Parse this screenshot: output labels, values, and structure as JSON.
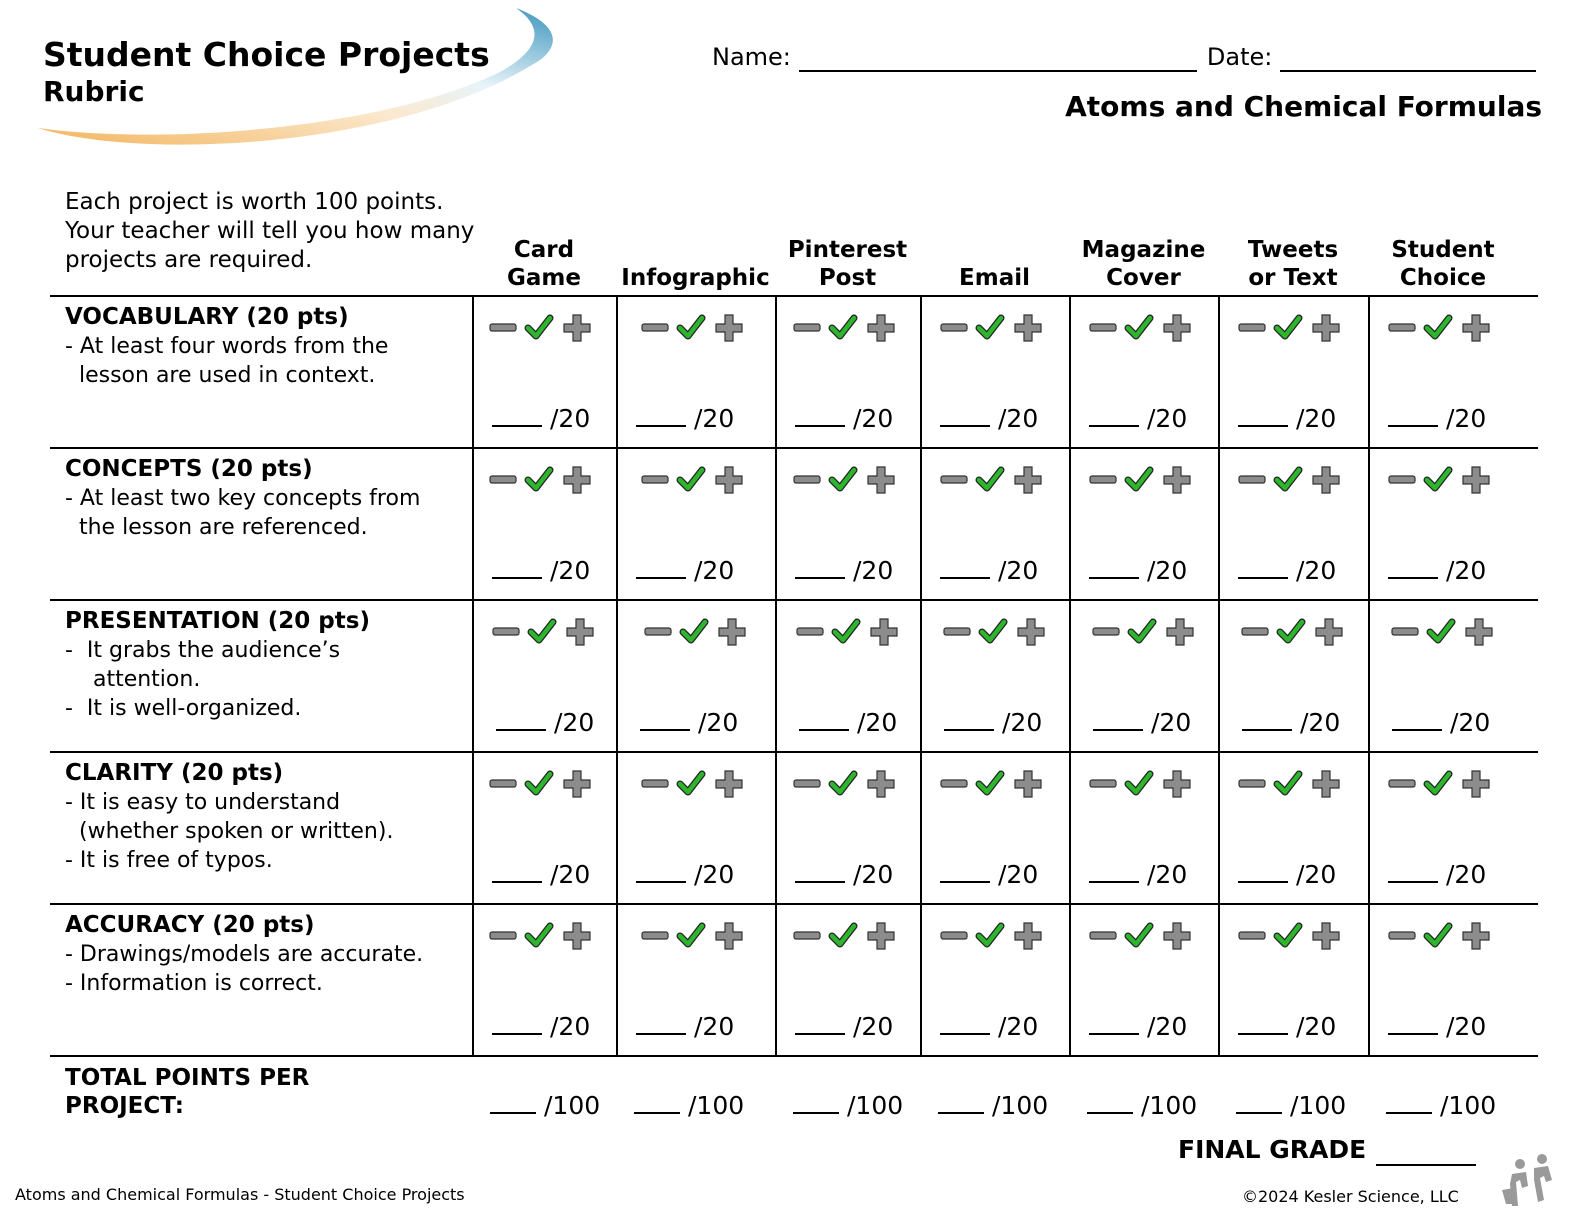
{
  "header": {
    "title": "Student Choice Projects",
    "subtitle": "Rubric",
    "name_label": "Name:",
    "date_label": "Date:",
    "topic": "Atoms and Chemical Formulas"
  },
  "intro": "Each project is worth 100 points. Your teacher will tell you how many projects are required.",
  "columns": [
    {
      "line1": "Card",
      "line2": "Game"
    },
    {
      "line1": "",
      "line2": "Infographic"
    },
    {
      "line1": "Pinterest",
      "line2": "Post"
    },
    {
      "line1": "",
      "line2": "Email"
    },
    {
      "line1": "Magazine",
      "line2": "Cover"
    },
    {
      "line1": "Tweets",
      "line2": "or Text"
    },
    {
      "line1": "Student",
      "line2": "Choice"
    }
  ],
  "criteria": [
    {
      "title": "VOCABULARY (20 pts)",
      "lines": [
        "- At least four words from the",
        "  lesson are used in context."
      ]
    },
    {
      "title": "CONCEPTS (20 pts)",
      "lines": [
        "- At least two key concepts from",
        "  the lesson are referenced."
      ]
    },
    {
      "title": "PRESENTATION (20 pts)",
      "lines": [
        "-  It grabs the audience’s",
        "    attention.",
        "-  It is well-organized."
      ]
    },
    {
      "title": "CLARITY (20 pts)",
      "lines": [
        "- It is easy to understand",
        "  (whether spoken or written).",
        "- It is free of typos."
      ]
    },
    {
      "title": "ACCURACY (20 pts)",
      "lines": [
        "- Drawings/models are accurate.",
        "- Information is correct."
      ]
    }
  ],
  "score_label": "/20",
  "total_label_line1": "TOTAL POINTS PER",
  "total_label_line2": "PROJECT:",
  "total_score_label": "/100",
  "final_grade_label": "FINAL GRADE",
  "footer": {
    "left": "Atoms and Chemical Formulas - Student Choice Projects",
    "right": "©2024  Kesler Science, LLC"
  },
  "colors": {
    "check": "#2db52d",
    "minus_plus": "#8c8c8c",
    "swoosh_blue": "#4a9fc4",
    "swoosh_orange": "#f2b25c"
  },
  "icons": [
    "minus-icon",
    "check-icon",
    "plus-icon",
    "swoosh-logo",
    "kesler-mascot-icon"
  ]
}
